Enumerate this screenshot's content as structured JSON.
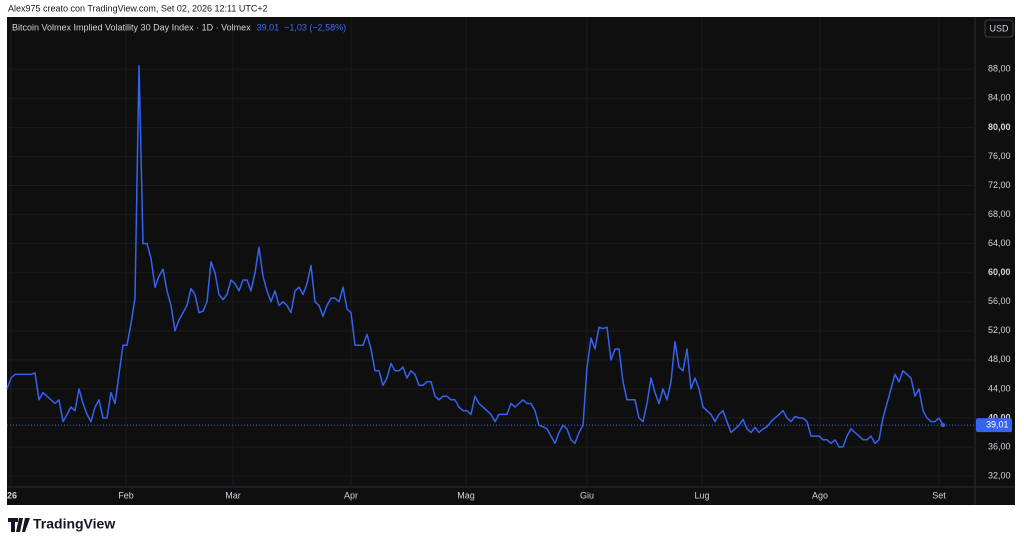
{
  "header": "Alex975 creato con TradingView.com, Set 02, 2026 12:11 UTC+2",
  "brand": "TradingView",
  "chart_data": {
    "type": "line",
    "title": "Bitcoin Volmex Implied Volatility 30 Day Index · 1D · Volmex",
    "last_label": "39,01",
    "change_label": "−1,03 (−2,58%)",
    "currency": "USD",
    "color": "#3563f0",
    "grid": true,
    "values": [
      44,
      45.5,
      46,
      46,
      46,
      46,
      46,
      46.2,
      42.5,
      43.5,
      43,
      42.5,
      42,
      42.5,
      39.5,
      40.5,
      41.5,
      41,
      44,
      42,
      40.5,
      39.5,
      41.5,
      42.5,
      40,
      40,
      43.5,
      42,
      46,
      50,
      50,
      53,
      56.5,
      88.5,
      64,
      64,
      62,
      58,
      59.5,
      60.5,
      57.5,
      55.5,
      52,
      53.5,
      54.5,
      55.5,
      57.8,
      57,
      54.5,
      54.7,
      56,
      61.5,
      60,
      57,
      56.3,
      57,
      59,
      58.5,
      57.5,
      59,
      59,
      57.5,
      60,
      63.5,
      59.5,
      57.5,
      56,
      57.5,
      55.5,
      56,
      55.5,
      54.5,
      57.5,
      58,
      57,
      58.5,
      61,
      56,
      55.5,
      54,
      55.5,
      56.5,
      56.5,
      56,
      58,
      55,
      54.5,
      50,
      50,
      50,
      51.5,
      49.5,
      46.5,
      46.5,
      44.5,
      45.5,
      47.5,
      46.5,
      46.5,
      47,
      45.5,
      46.5,
      46,
      44.5,
      44.5,
      45,
      45,
      43,
      42.5,
      43,
      43,
      42.5,
      42.5,
      41.5,
      41,
      41,
      40.5,
      43,
      42,
      41.5,
      41,
      40.5,
      39.5,
      40.5,
      40.5,
      40.5,
      42,
      41.5,
      42,
      42.5,
      42,
      42,
      41,
      39,
      38.8,
      38.5,
      37.5,
      36.5,
      38,
      39,
      38.5,
      37,
      36.5,
      38,
      39,
      47,
      51,
      49.5,
      52.5,
      52.3,
      52.5,
      48,
      49.5,
      49.5,
      45,
      42.5,
      42.5,
      42.5,
      40,
      39.5,
      42,
      45.5,
      43.5,
      42,
      44,
      42.5,
      45,
      50.5,
      47,
      46.5,
      49.5,
      44,
      45.5,
      44,
      41.5,
      41,
      40.5,
      39.5,
      40.5,
      41,
      39.5,
      38,
      38.5,
      39,
      39.8,
      38.5,
      38,
      38.7,
      38,
      38.5,
      38.8,
      39.5,
      40,
      40.5,
      41,
      40,
      39.5,
      40.2,
      40,
      40,
      39.5,
      37.5,
      37.5,
      37.5,
      37,
      37,
      36.5,
      37,
      36,
      36,
      37.5,
      38.5,
      38,
      37.5,
      37,
      37,
      37.5,
      36.5,
      37,
      40,
      42,
      44,
      46,
      45,
      46.5,
      46,
      45.5,
      43,
      44,
      41,
      40,
      39.5,
      39.5,
      40,
      39.01
    ],
    "xlim": [
      0,
      242
    ],
    "xticks": [
      {
        "value": 1,
        "label": "26"
      },
      {
        "value": 29.75,
        "label": "Feb"
      },
      {
        "value": 56.5,
        "label": "Mar"
      },
      {
        "value": 86,
        "label": "Apr"
      },
      {
        "value": 114.75,
        "label": "Mag"
      },
      {
        "value": 145,
        "label": "Giu"
      },
      {
        "value": 173.75,
        "label": "Lug"
      },
      {
        "value": 203.25,
        "label": "Ago"
      },
      {
        "value": 233,
        "label": "Set"
      }
    ],
    "ylim": [
      30.5,
      95.2
    ],
    "yticks": [
      {
        "value": 32,
        "label": "32,00"
      },
      {
        "value": 36,
        "label": "36,00"
      },
      {
        "value": 40,
        "label": "40,00"
      },
      {
        "value": 44,
        "label": "44,00"
      },
      {
        "value": 48,
        "label": "48,00"
      },
      {
        "value": 52,
        "label": "52,00"
      },
      {
        "value": 56,
        "label": "56,00"
      },
      {
        "value": 60,
        "label": "60,00"
      },
      {
        "value": 64,
        "label": "64,00"
      },
      {
        "value": 68,
        "label": "68,00"
      },
      {
        "value": 72,
        "label": "72,00"
      },
      {
        "value": 76,
        "label": "76,00"
      },
      {
        "value": 80,
        "label": "80,00"
      },
      {
        "value": 84,
        "label": "84,00"
      },
      {
        "value": 88,
        "label": "88,00"
      }
    ]
  }
}
